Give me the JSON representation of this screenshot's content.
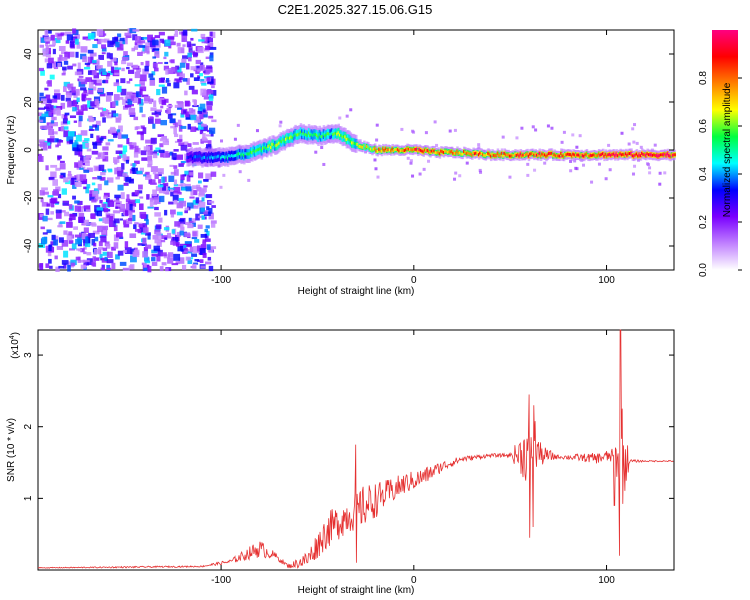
{
  "title": "C2E1.2025.327.15.06.G15",
  "chart_data": [
    {
      "type": "heatmap",
      "name": "spectrogram",
      "title": "C2E1.2025.327.15.06.G15",
      "xlabel": "Height of straight line (km)",
      "ylabel": "Frequency (Hz)",
      "xlim": [
        -195,
        135
      ],
      "ylim": [
        -50,
        50
      ],
      "xticks": [
        -100,
        0,
        100
      ],
      "yticks": [
        -40,
        -20,
        0,
        20,
        40
      ],
      "colorbar": {
        "label": "Normalized spectral amplitude",
        "range": [
          0,
          1
        ],
        "ticks": [
          0.0,
          0.2,
          0.4,
          0.6,
          0.8
        ],
        "colors": [
          "#ffffff",
          "#c080ff",
          "#7a00ff",
          "#0000ff",
          "#00ffff",
          "#00ff40",
          "#ffff00",
          "#ff8000",
          "#ff0000",
          "#ff0080"
        ]
      },
      "ridge": {
        "x": [
          -118,
          -110,
          -100,
          -90,
          -80,
          -70,
          -60,
          -50,
          -40,
          -30,
          -20,
          -10,
          0,
          10,
          20,
          40,
          60,
          80,
          100,
          110,
          135
        ],
        "freq": [
          -3,
          -3,
          -3,
          -2,
          0,
          3,
          7,
          6,
          7,
          2,
          0,
          0,
          0,
          -1,
          -1,
          -2,
          -2,
          -2,
          -2,
          -2,
          -2
        ],
        "amp": [
          0.35,
          0.4,
          0.45,
          0.5,
          0.6,
          0.65,
          0.6,
          0.55,
          0.6,
          0.65,
          0.75,
          0.8,
          0.9,
          0.85,
          0.8,
          0.85,
          0.9,
          0.85,
          0.9,
          0.95,
          0.95
        ]
      },
      "noise_region": [
        -195,
        -105
      ]
    },
    {
      "type": "line",
      "name": "snr",
      "xlabel": "Height of straight line (km)",
      "ylabel": "SNR (10 * v/v)",
      "exponent_label": "(x10",
      "exponent_value": "4",
      "xlim": [
        -195,
        135
      ],
      "ylim": [
        0,
        3.35
      ],
      "xticks": [
        -100,
        0,
        100
      ],
      "yticks": [
        1,
        2,
        3
      ],
      "color": "#e53030",
      "series": {
        "name": "SNR",
        "x": [
          -195,
          -150,
          -110,
          -95,
          -80,
          -72,
          -65,
          -55,
          -45,
          -35,
          -25,
          -15,
          -5,
          5,
          15,
          25,
          40,
          50,
          58,
          62,
          66,
          75,
          85,
          95,
          104,
          108,
          112,
          120,
          135
        ],
        "y": [
          0.03,
          0.04,
          0.05,
          0.12,
          0.3,
          0.2,
          0.05,
          0.15,
          0.55,
          0.75,
          0.9,
          1.05,
          1.2,
          1.3,
          1.45,
          1.55,
          1.6,
          1.6,
          1.62,
          1.8,
          1.6,
          1.58,
          1.57,
          1.56,
          1.6,
          1.55,
          1.52,
          1.52,
          1.52
        ],
        "spread": [
          0.01,
          0.02,
          0.02,
          0.06,
          0.25,
          0.1,
          0.05,
          0.25,
          0.5,
          0.5,
          0.6,
          0.4,
          0.3,
          0.25,
          0.15,
          0.08,
          0.05,
          0.05,
          0.8,
          0.9,
          0.3,
          0.05,
          0.1,
          0.15,
          0.2,
          1.6,
          0.05,
          0.02,
          0.02
        ]
      },
      "spikes": [
        {
          "x": 60,
          "ymin": 0.45,
          "ymax": 2.45
        },
        {
          "x": 62,
          "ymin": 0.6,
          "ymax": 2.3
        },
        {
          "x": 107,
          "ymin": 0.2,
          "ymax": 3.35
        },
        {
          "x": 104,
          "ymin": 0.9,
          "ymax": 2.75
        },
        {
          "x": -30,
          "ymin": 0.1,
          "ymax": 1.75
        }
      ]
    }
  ]
}
